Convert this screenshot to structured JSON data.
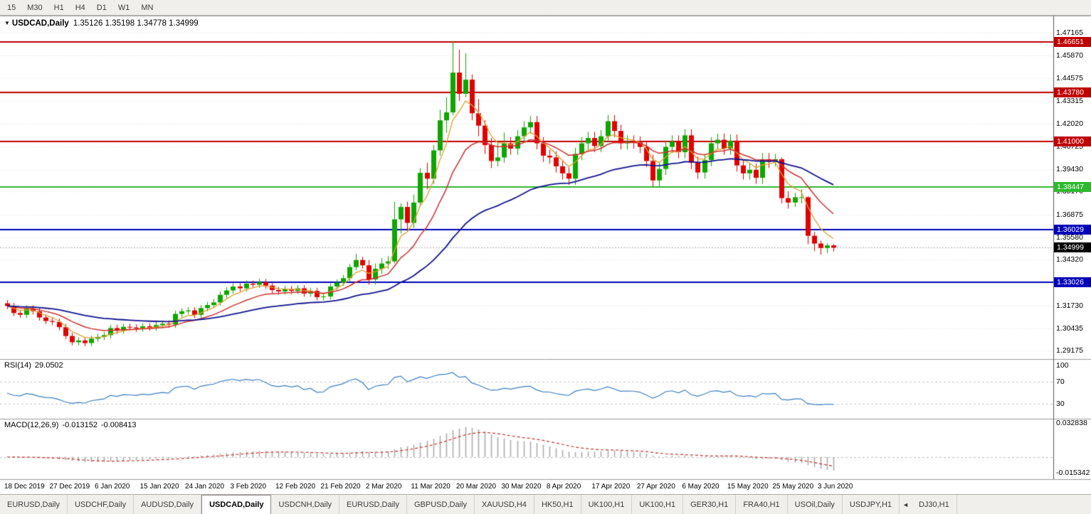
{
  "toolbar": {
    "periods": [
      "15",
      "M30",
      "H1",
      "H4",
      "D1",
      "W1",
      "MN"
    ]
  },
  "chart_header": {
    "dropdown_icon": "▼",
    "symbol": "USDCAD,Daily",
    "ohlc": "1.35126 1.35198 1.34778 1.34999"
  },
  "chart_data": {
    "type": "candlestick",
    "title": "USDCAD,Daily",
    "x_labels": [
      "18 Dec 2019",
      "27 Dec 2019",
      "6 Jan 2020",
      "15 Jan 2020",
      "24 Jan 2020",
      "3 Feb 2020",
      "12 Feb 2020",
      "21 Feb 2020",
      "2 Mar 2020",
      "11 Mar 2020",
      "20 Mar 2020",
      "30 Mar 2020",
      "8 Apr 2020",
      "17 Apr 2020",
      "27 Apr 2020",
      "6 May 2020",
      "15 May 2020",
      "25 May 2020",
      "3 Jun 2020"
    ],
    "x_label_step": 7,
    "price_axis": {
      "min": 1.289,
      "max": 1.478,
      "ticks": [
        "1.47165",
        "1.45870",
        "1.44575",
        "1.43315",
        "1.42020",
        "1.40725",
        "1.39430",
        "1.38170",
        "1.36875",
        "1.35580",
        "1.34320",
        "1.33025",
        "1.31730",
        "1.30435",
        "1.29175"
      ]
    },
    "levels": [
      {
        "value": "1.46651",
        "color": "#C00000"
      },
      {
        "value": "1.43780",
        "color": "#C00000"
      },
      {
        "value": "1.41000",
        "color": "#C00000"
      },
      {
        "value": "1.38447",
        "color": "#2EB82E"
      },
      {
        "value": "1.36029",
        "color": "#0000B8"
      },
      {
        "value": "1.33026",
        "color": "#0000B8"
      }
    ],
    "current_price": {
      "value": "1.34999",
      "badge_color": "#000000"
    },
    "candle_colors": {
      "up": "#0EA600",
      "down": "#E00000"
    },
    "moving_averages": [
      {
        "period": 5,
        "color": "#E0A030",
        "width": 1.3
      },
      {
        "period": 13,
        "color": "#D03030",
        "width": 1.5
      },
      {
        "period": 40,
        "color": "#12128F",
        "width": 1.8
      }
    ],
    "candles": [
      [
        1.3185,
        1.3203,
        1.3152,
        1.317
      ],
      [
        1.317,
        1.3188,
        1.3112,
        1.313
      ],
      [
        1.313,
        1.3148,
        1.3102,
        1.312
      ],
      [
        1.312,
        1.3173,
        1.3102,
        1.3155
      ],
      [
        1.3155,
        1.3173,
        1.3122,
        1.314
      ],
      [
        1.314,
        1.3158,
        1.3087,
        1.3105
      ],
      [
        1.3105,
        1.3123,
        1.3067,
        1.3085
      ],
      [
        1.3085,
        1.3103,
        1.3062,
        1.308
      ],
      [
        1.308,
        1.3098,
        1.3032,
        1.305
      ],
      [
        1.305,
        1.3068,
        1.2982,
        1.3
      ],
      [
        1.3,
        1.3018,
        1.2947,
        1.2965
      ],
      [
        1.2965,
        1.2993,
        1.2947,
        1.2975
      ],
      [
        1.2975,
        1.2993,
        1.2942,
        1.296
      ],
      [
        1.296,
        1.3003,
        1.2942,
        1.2985
      ],
      [
        1.2985,
        1.3013,
        1.2967,
        1.2995
      ],
      [
        1.2995,
        1.3023,
        1.2977,
        1.3005
      ],
      [
        1.3005,
        1.3063,
        1.2987,
        1.3045
      ],
      [
        1.3045,
        1.3063,
        1.3012,
        1.303
      ],
      [
        1.303,
        1.307,
        1.3012,
        1.3052
      ],
      [
        1.3052,
        1.307,
        1.303,
        1.3048
      ],
      [
        1.3048,
        1.3066,
        1.3024,
        1.3042
      ],
      [
        1.3042,
        1.3073,
        1.3024,
        1.3055
      ],
      [
        1.3055,
        1.3073,
        1.303,
        1.3048
      ],
      [
        1.3048,
        1.308,
        1.303,
        1.3062
      ],
      [
        1.3062,
        1.3088,
        1.3044,
        1.307
      ],
      [
        1.307,
        1.3088,
        1.3047,
        1.3065
      ],
      [
        1.3065,
        1.3143,
        1.3047,
        1.3125
      ],
      [
        1.3125,
        1.3158,
        1.3107,
        1.314
      ],
      [
        1.314,
        1.3163,
        1.3122,
        1.3145
      ],
      [
        1.3145,
        1.3163,
        1.3102,
        1.312
      ],
      [
        1.312,
        1.3176,
        1.3102,
        1.3158
      ],
      [
        1.3158,
        1.3193,
        1.314,
        1.3175
      ],
      [
        1.3175,
        1.3208,
        1.3157,
        1.319
      ],
      [
        1.319,
        1.3251,
        1.3172,
        1.3233
      ],
      [
        1.3233,
        1.3276,
        1.3215,
        1.3258
      ],
      [
        1.3258,
        1.3298,
        1.324,
        1.328
      ],
      [
        1.328,
        1.3298,
        1.3252,
        1.327
      ],
      [
        1.327,
        1.3314,
        1.3252,
        1.3296
      ],
      [
        1.3296,
        1.3314,
        1.3272,
        1.329
      ],
      [
        1.329,
        1.3323,
        1.3272,
        1.3305
      ],
      [
        1.3305,
        1.3323,
        1.3267,
        1.3285
      ],
      [
        1.3285,
        1.3303,
        1.3242,
        1.326
      ],
      [
        1.326,
        1.3278,
        1.3234,
        1.3252
      ],
      [
        1.3252,
        1.3283,
        1.3234,
        1.3265
      ],
      [
        1.3265,
        1.3283,
        1.3237,
        1.3255
      ],
      [
        1.3255,
        1.3288,
        1.3237,
        1.327
      ],
      [
        1.327,
        1.3288,
        1.3222,
        1.324
      ],
      [
        1.324,
        1.3273,
        1.3222,
        1.3255
      ],
      [
        1.3255,
        1.3273,
        1.3202,
        1.322
      ],
      [
        1.322,
        1.3242,
        1.3202,
        1.3224
      ],
      [
        1.3224,
        1.3298,
        1.3206,
        1.328
      ],
      [
        1.328,
        1.332,
        1.3262,
        1.3302
      ],
      [
        1.3302,
        1.3345,
        1.3284,
        1.3327
      ],
      [
        1.3327,
        1.3408,
        1.3309,
        1.339
      ],
      [
        1.339,
        1.3465,
        1.3372,
        1.343
      ],
      [
        1.343,
        1.3448,
        1.3382,
        1.34
      ],
      [
        1.34,
        1.343,
        1.329,
        1.332
      ],
      [
        1.332,
        1.341,
        1.329,
        1.338
      ],
      [
        1.338,
        1.344,
        1.335,
        1.341
      ],
      [
        1.341,
        1.3452,
        1.338,
        1.3422
      ],
      [
        1.3422,
        1.376,
        1.341,
        1.366
      ],
      [
        1.366,
        1.375,
        1.358,
        1.373
      ],
      [
        1.373,
        1.376,
        1.359,
        1.364
      ],
      [
        1.364,
        1.38,
        1.361,
        1.3755
      ],
      [
        1.3755,
        1.395,
        1.373,
        1.3923
      ],
      [
        1.3923,
        1.398,
        1.383,
        1.389
      ],
      [
        1.389,
        1.408,
        1.386,
        1.405
      ],
      [
        1.405,
        1.428,
        1.402,
        1.422
      ],
      [
        1.422,
        1.435,
        1.415,
        1.4265
      ],
      [
        1.4265,
        1.4668,
        1.425,
        1.449
      ],
      [
        1.449,
        1.462,
        1.433,
        1.437
      ],
      [
        1.437,
        1.46,
        1.435,
        1.445
      ],
      [
        1.445,
        1.448,
        1.422,
        1.426
      ],
      [
        1.426,
        1.434,
        1.413,
        1.419
      ],
      [
        1.419,
        1.422,
        1.403,
        1.408
      ],
      [
        1.408,
        1.412,
        1.395,
        1.399
      ],
      [
        1.399,
        1.409,
        1.396,
        1.401
      ],
      [
        1.401,
        1.415,
        1.398,
        1.409
      ],
      [
        1.409,
        1.4125,
        1.4025,
        1.406
      ],
      [
        1.406,
        1.4165,
        1.4025,
        1.413
      ],
      [
        1.413,
        1.4215,
        1.4095,
        1.418
      ],
      [
        1.418,
        1.4245,
        1.4145,
        1.421
      ],
      [
        1.421,
        1.4245,
        1.4055,
        1.409
      ],
      [
        1.409,
        1.4125,
        1.3985,
        1.402
      ],
      [
        1.402,
        1.4055,
        1.3975,
        1.401
      ],
      [
        1.401,
        1.4045,
        1.3925,
        1.396
      ],
      [
        1.396,
        1.3995,
        1.3885,
        1.392
      ],
      [
        1.392,
        1.3955,
        1.3855,
        1.389
      ],
      [
        1.389,
        1.4065,
        1.3855,
        1.403
      ],
      [
        1.403,
        1.4125,
        1.3995,
        1.409
      ],
      [
        1.409,
        1.4155,
        1.4055,
        1.412
      ],
      [
        1.412,
        1.4155,
        1.404,
        1.4075
      ],
      [
        1.4075,
        1.4165,
        1.404,
        1.413
      ],
      [
        1.413,
        1.425,
        1.4095,
        1.4215
      ],
      [
        1.4215,
        1.425,
        1.4125,
        1.416
      ],
      [
        1.416,
        1.4195,
        1.4055,
        1.409
      ],
      [
        1.409,
        1.4135,
        1.4055,
        1.41
      ],
      [
        1.41,
        1.4135,
        1.406,
        1.4095
      ],
      [
        1.4095,
        1.413,
        1.4035,
        1.407
      ],
      [
        1.407,
        1.4105,
        1.3955,
        1.399
      ],
      [
        1.399,
        1.4025,
        1.3845,
        1.388
      ],
      [
        1.388,
        1.398,
        1.3845,
        1.3945
      ],
      [
        1.3945,
        1.4105,
        1.391,
        1.407
      ],
      [
        1.407,
        1.4135,
        1.4035,
        1.41
      ],
      [
        1.41,
        1.4135,
        1.4005,
        1.404
      ],
      [
        1.404,
        1.417,
        1.4005,
        1.4135
      ],
      [
        1.4135,
        1.417,
        1.3945,
        1.398
      ],
      [
        1.398,
        1.4015,
        1.389,
        1.3925
      ],
      [
        1.3925,
        1.403,
        1.389,
        1.3995
      ],
      [
        1.3995,
        1.4125,
        1.396,
        1.409
      ],
      [
        1.409,
        1.4145,
        1.4055,
        1.411
      ],
      [
        1.411,
        1.4145,
        1.4025,
        1.406
      ],
      [
        1.406,
        1.414,
        1.4025,
        1.4105
      ],
      [
        1.4105,
        1.414,
        1.393,
        1.3965
      ],
      [
        1.3965,
        1.4,
        1.3885,
        1.392
      ],
      [
        1.392,
        1.3975,
        1.3885,
        1.394
      ],
      [
        1.394,
        1.3975,
        1.386,
        1.3895
      ],
      [
        1.3895,
        1.4035,
        1.386,
        1.4
      ],
      [
        1.4,
        1.4035,
        1.395,
        1.3985
      ],
      [
        1.3985,
        1.403,
        1.396,
        1.4
      ],
      [
        1.4,
        1.401,
        1.375,
        1.378
      ],
      [
        1.378,
        1.382,
        1.372,
        1.3755
      ],
      [
        1.3755,
        1.381,
        1.373,
        1.3785
      ],
      [
        1.3785,
        1.383,
        1.375,
        1.3785
      ],
      [
        1.3785,
        1.379,
        1.352,
        1.3567
      ],
      [
        1.3567,
        1.359,
        1.348,
        1.3523
      ],
      [
        1.3523,
        1.354,
        1.346,
        1.3498
      ],
      [
        1.3498,
        1.3525,
        1.347,
        1.35126
      ],
      [
        1.35126,
        1.35198,
        1.34778,
        1.34999
      ]
    ],
    "rsi": {
      "label": "RSI(14)",
      "value": "29.0502",
      "period": 14,
      "line_color": "#3C7EBF",
      "level_labels": [
        "100",
        "70",
        "30"
      ],
      "levels_dashed": [
        70,
        30
      ],
      "range": [
        10,
        108
      ]
    },
    "macd": {
      "label": "MACD(12,26,9)",
      "value_main": "-0.013152",
      "value_signal": "-0.008413",
      "fast": 12,
      "slow": 26,
      "signal": 9,
      "bar_color": "#ABABAB",
      "signal_color": "#C83232",
      "axis_labels": [
        "0.032838",
        "-0.015342"
      ],
      "range": [
        -0.0175,
        0.0345
      ]
    }
  },
  "tabs": {
    "items": [
      {
        "label": "EURUSD,Daily"
      },
      {
        "label": "USDCHF,Daily"
      },
      {
        "label": "AUDUSD,Daily"
      },
      {
        "label": "USDCAD,Daily",
        "active": true
      },
      {
        "label": "USDCNH,Daily"
      },
      {
        "label": "EURUSD,Daily"
      },
      {
        "label": "GBPUSD,Daily"
      },
      {
        "label": "XAUUSD,H4"
      },
      {
        "label": "HK50,H1"
      },
      {
        "label": "UK100,H1"
      },
      {
        "label": "UK100,H1"
      },
      {
        "label": "GER30,H1"
      },
      {
        "label": "FRA40,H1"
      },
      {
        "label": "USOil,Daily"
      },
      {
        "label": "USDJPY,H1"
      },
      {
        "label": "DJ30,H1"
      }
    ],
    "scroll_left_icon": "◄"
  }
}
